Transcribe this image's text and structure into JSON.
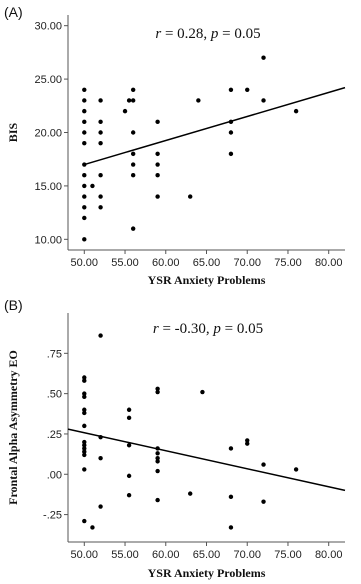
{
  "chart_data": [
    {
      "type": "scatter",
      "panel_label": "(A)",
      "annotation": "r = 0.28, p = 0.05",
      "xlabel": "YSR Anxiety Problems",
      "ylabel": "BIS",
      "xlim": [
        48,
        82
      ],
      "ylim": [
        9,
        31
      ],
      "xticks": [
        "50.00",
        "55.00",
        "60.00",
        "65.00",
        "70.00",
        "75.00",
        "80.00"
      ],
      "yticks": [
        "10.00",
        "15.00",
        "20.00",
        "25.00",
        "30.00"
      ],
      "grid": false,
      "fit_line": [
        [
          50,
          17
        ],
        [
          82,
          24.2
        ]
      ],
      "points": [
        [
          50,
          24
        ],
        [
          50,
          23
        ],
        [
          50,
          22
        ],
        [
          50,
          21
        ],
        [
          50,
          20
        ],
        [
          50,
          19
        ],
        [
          50,
          17
        ],
        [
          50,
          16
        ],
        [
          50,
          15
        ],
        [
          50,
          14
        ],
        [
          50,
          13
        ],
        [
          50,
          12
        ],
        [
          50,
          10
        ],
        [
          51,
          15
        ],
        [
          52,
          23
        ],
        [
          52,
          21
        ],
        [
          52,
          20
        ],
        [
          52,
          19
        ],
        [
          52,
          16
        ],
        [
          52,
          14
        ],
        [
          52,
          13
        ],
        [
          55,
          22
        ],
        [
          55.5,
          23
        ],
        [
          56,
          24
        ],
        [
          56,
          23
        ],
        [
          56,
          20
        ],
        [
          56,
          18
        ],
        [
          56,
          17
        ],
        [
          56,
          16
        ],
        [
          56,
          11
        ],
        [
          59,
          21
        ],
        [
          59,
          18
        ],
        [
          59,
          17
        ],
        [
          59,
          16
        ],
        [
          59,
          14
        ],
        [
          63,
          14
        ],
        [
          64,
          23
        ],
        [
          68,
          24
        ],
        [
          68,
          21
        ],
        [
          68,
          20
        ],
        [
          68,
          18
        ],
        [
          70,
          24
        ],
        [
          72,
          27
        ],
        [
          72,
          23
        ],
        [
          76,
          22
        ]
      ]
    },
    {
      "type": "scatter",
      "panel_label": "(B)",
      "annotation": "r = -0.30, p = 0.05",
      "xlabel": "YSR Anxiety Problems",
      "ylabel": "Frontal Alpha Asymmetry EO",
      "xlim": [
        48,
        82
      ],
      "ylim": [
        -0.42,
        1.0
      ],
      "xticks": [
        "50.00",
        "55.00",
        "60.00",
        "65.00",
        "70.00",
        "75.00",
        "80.00"
      ],
      "yticks": [
        "-.25",
        ".00",
        ".25",
        ".50",
        ".75"
      ],
      "grid": false,
      "fit_line": [
        [
          48,
          0.28
        ],
        [
          82,
          -0.1
        ]
      ],
      "points": [
        [
          50,
          0.6
        ],
        [
          50,
          0.58
        ],
        [
          50,
          0.5
        ],
        [
          50,
          0.48
        ],
        [
          50,
          0.4
        ],
        [
          50,
          0.38
        ],
        [
          50,
          0.3
        ],
        [
          50,
          0.2
        ],
        [
          50,
          0.18
        ],
        [
          50,
          0.16
        ],
        [
          50,
          0.14
        ],
        [
          50,
          0.12
        ],
        [
          50,
          0.03
        ],
        [
          50,
          -0.29
        ],
        [
          51,
          -0.33
        ],
        [
          52,
          0.86
        ],
        [
          52,
          0.23
        ],
        [
          52,
          0.1
        ],
        [
          52,
          -0.2
        ],
        [
          55.5,
          0.4
        ],
        [
          55.5,
          0.35
        ],
        [
          55.5,
          0.18
        ],
        [
          55.5,
          -0.01
        ],
        [
          55.5,
          -0.13
        ],
        [
          59,
          0.53
        ],
        [
          59,
          0.51
        ],
        [
          59,
          0.16
        ],
        [
          59,
          0.13
        ],
        [
          59,
          0.1
        ],
        [
          59,
          0.08
        ],
        [
          59,
          0.02
        ],
        [
          59,
          -0.16
        ],
        [
          63,
          -0.12
        ],
        [
          64.5,
          0.51
        ],
        [
          68,
          0.16
        ],
        [
          68,
          -0.14
        ],
        [
          68,
          -0.33
        ],
        [
          70,
          0.21
        ],
        [
          70,
          0.19
        ],
        [
          72,
          0.06
        ],
        [
          72,
          -0.17
        ],
        [
          76,
          0.03
        ]
      ]
    }
  ]
}
